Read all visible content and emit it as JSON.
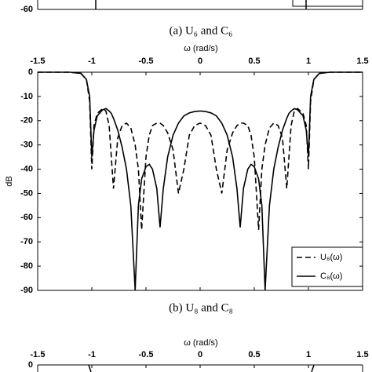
{
  "chart_data": [
    {
      "type": "line",
      "caption": "(a) U₆ and C₆",
      "yticks": [
        -60
      ]
    },
    {
      "type": "line",
      "caption": "(b) U₈ and C₈",
      "xlabel": "ω (rad/s)",
      "ylabel": "dB",
      "xlim": [
        -1.5,
        1.5
      ],
      "ylim": [
        -90,
        0
      ],
      "xticks": [
        -1.5,
        -1,
        -0.5,
        0,
        0.5,
        1,
        1.5
      ],
      "yticks": [
        0,
        -10,
        -20,
        -30,
        -40,
        -50,
        -60,
        -70,
        -80,
        -90
      ],
      "x": [
        -1.5,
        -1.2,
        -1.1,
        -1.05,
        -1.02,
        -1.0,
        -0.98,
        -0.95,
        -0.9,
        -0.87,
        -0.84,
        -0.82,
        -0.8,
        -0.76,
        -0.72,
        -0.68,
        -0.64,
        -0.6,
        -0.57,
        -0.54,
        -0.5,
        -0.47,
        -0.44,
        -0.4,
        -0.37,
        -0.34,
        -0.3,
        -0.25,
        -0.2,
        -0.15,
        -0.1,
        -0.05,
        0,
        0.05,
        0.1,
        0.15,
        0.2,
        0.25,
        0.3,
        0.34,
        0.37,
        0.4,
        0.44,
        0.47,
        0.5,
        0.54,
        0.57,
        0.6,
        0.64,
        0.68,
        0.72,
        0.76,
        0.8,
        0.82,
        0.84,
        0.87,
        0.9,
        0.95,
        0.98,
        1.0,
        1.02,
        1.05,
        1.1,
        1.2,
        1.5
      ],
      "legend": "lower right",
      "series": [
        {
          "name": "U₈(ω)",
          "color": "#000000",
          "dash": true,
          "values": [
            0,
            0,
            -0.5,
            -3,
            -12,
            -40,
            -22,
            -17,
            -15,
            -16,
            -22,
            -35,
            -48,
            -27,
            -22,
            -21,
            -23,
            -30,
            -40,
            -65,
            -35,
            -26,
            -22,
            -21,
            -21,
            -22,
            -25,
            -32,
            -50,
            -40,
            -26,
            -22,
            -21,
            -22,
            -26,
            -40,
            -50,
            -32,
            -25,
            -22,
            -21,
            -21,
            -22,
            -26,
            -35,
            -65,
            -40,
            -30,
            -23,
            -21,
            -22,
            -27,
            -48,
            -35,
            -22,
            -16,
            -15,
            -17,
            -22,
            -40,
            -12,
            -3,
            -0.5,
            0,
            0
          ]
        },
        {
          "name": "C₈(ω)",
          "color": "#000000",
          "dash": false,
          "values": [
            0,
            0,
            -0.5,
            -3,
            -10,
            -35,
            -24,
            -18,
            -15.5,
            -15,
            -16,
            -17,
            -19,
            -24,
            -31,
            -40,
            -55,
            -90,
            -55,
            -44,
            -39,
            -38,
            -40,
            -48,
            -64,
            -48,
            -35,
            -26,
            -21,
            -18,
            -16.8,
            -16.2,
            -16,
            -16.2,
            -16.8,
            -18,
            -21,
            -26,
            -35,
            -48,
            -64,
            -48,
            -40,
            -38,
            -39,
            -44,
            -55,
            -90,
            -55,
            -40,
            -31,
            -24,
            -19,
            -17,
            -16,
            -15,
            -15.5,
            -18,
            -24,
            -35,
            -10,
            -3,
            -0.5,
            0,
            0
          ]
        }
      ]
    },
    {
      "type": "line",
      "xlabel": "ω (rad/s)",
      "xlim": [
        -1.5,
        1.5
      ],
      "xticks": [
        -1.5,
        -1,
        -0.5,
        0,
        0.5,
        1,
        1.5
      ],
      "yticks": [
        0
      ]
    }
  ]
}
